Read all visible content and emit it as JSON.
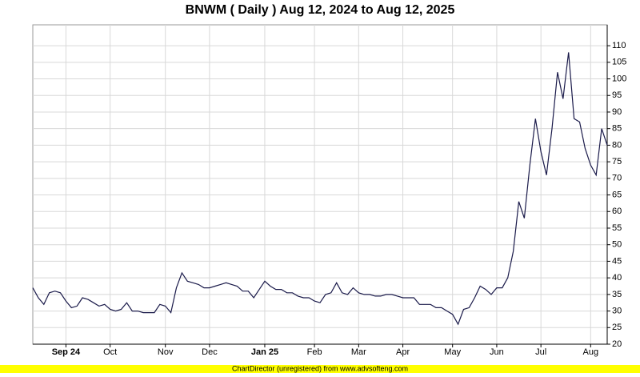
{
  "chart_data": {
    "type": "line",
    "title": "BNWM ( Daily ) Aug 12, 2024 to Aug 12, 2025",
    "credit": "ChartDirector (unregistered) from www.advsofteng.com",
    "categories": [
      null,
      null,
      null,
      null,
      null,
      null,
      "Sep 24",
      null,
      null,
      null,
      null,
      null,
      null,
      null,
      "Oct",
      null,
      null,
      null,
      null,
      null,
      null,
      null,
      null,
      null,
      "Nov",
      null,
      null,
      null,
      null,
      null,
      null,
      null,
      "Dec",
      null,
      null,
      null,
      null,
      null,
      null,
      null,
      null,
      null,
      "Jan 25",
      null,
      null,
      null,
      null,
      null,
      null,
      null,
      null,
      "Feb",
      null,
      null,
      null,
      null,
      null,
      null,
      null,
      "Mar",
      null,
      null,
      null,
      null,
      null,
      null,
      null,
      "Apr",
      null,
      null,
      null,
      null,
      null,
      null,
      null,
      null,
      "May",
      null,
      null,
      null,
      null,
      null,
      null,
      null,
      "Jun",
      null,
      null,
      null,
      null,
      null,
      null,
      null,
      "Jul",
      null,
      null,
      null,
      null,
      null,
      null,
      null,
      null,
      "Aug",
      null,
      null,
      null
    ],
    "values": [
      37,
      34,
      32,
      35.5,
      36,
      35.5,
      33,
      31,
      31.5,
      34,
      33.5,
      32.5,
      31.5,
      32,
      30.5,
      30,
      30.5,
      32.5,
      30,
      30,
      29.5,
      29.5,
      29.5,
      32,
      31.5,
      29.5,
      37,
      41.5,
      39,
      38.5,
      38,
      37,
      37,
      37.5,
      38,
      38.5,
      38,
      37.5,
      36,
      36,
      34,
      36.5,
      39,
      37.5,
      36.5,
      36.5,
      35.5,
      35.5,
      34.5,
      34,
      34,
      33,
      32.5,
      35,
      35.5,
      38.5,
      35.5,
      35,
      37,
      35.5,
      35,
      35,
      34.5,
      34.5,
      35,
      35,
      34.5,
      34,
      34,
      34,
      32,
      32,
      32,
      31,
      31,
      30,
      29,
      26,
      30.5,
      31,
      34,
      37.5,
      36.5,
      35,
      37,
      37,
      40,
      48,
      63,
      58,
      74,
      88,
      78,
      71,
      85,
      102,
      94,
      108,
      88,
      87,
      79,
      74,
      71,
      85,
      80
    ],
    "color": "#1a1a4a",
    "ylim": [
      20,
      116.3
    ],
    "yticks": [
      20,
      25,
      30,
      35,
      40,
      45,
      50,
      55,
      60,
      65,
      70,
      75,
      80,
      85,
      90,
      95,
      100,
      105,
      110
    ],
    "grid": true
  }
}
